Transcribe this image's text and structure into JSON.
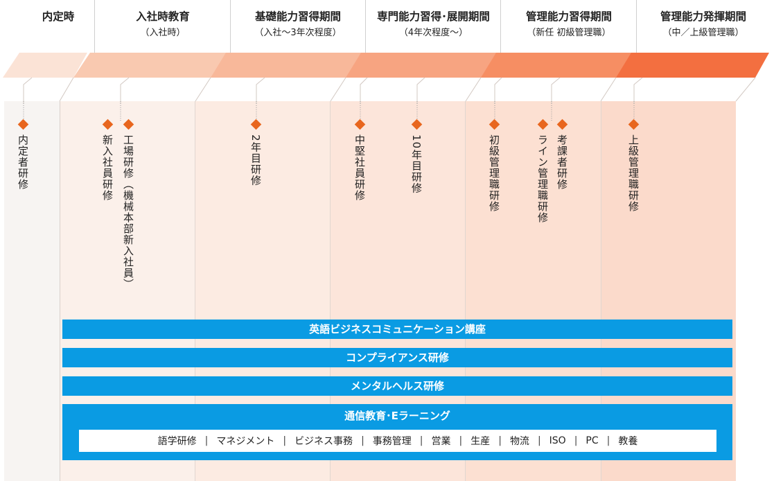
{
  "stages": [
    {
      "title": "内定時",
      "sub": ""
    },
    {
      "title": "入社時教育",
      "sub": "（入社時）"
    },
    {
      "title": "基礎能力習得期間",
      "sub": "（入社〜3年次程度）"
    },
    {
      "title": "専門能力習得･展開期間",
      "sub": "（4年次程度〜）"
    },
    {
      "title": "管理能力習得期間",
      "sub": "（新任 初級管理職）"
    },
    {
      "title": "管理能力発揮期間",
      "sub": "（中／上級管理職）"
    }
  ],
  "trainings": [
    {
      "label": "内定者研修"
    },
    {
      "label": "新入社員研修"
    },
    {
      "label": "工場研修（機械本部新入社員）"
    },
    {
      "label": "2年目研修"
    },
    {
      "label": "中堅社員研修"
    },
    {
      "label": "10年目研修"
    },
    {
      "label": "初級管理職研修"
    },
    {
      "label": "ライン管理職研修"
    },
    {
      "label": "考課者研修"
    },
    {
      "label": "上級管理職研修"
    }
  ],
  "bars": [
    {
      "label": "英語ビジネスコミュニケーション講座"
    },
    {
      "label": "コンプライアンス研修"
    },
    {
      "label": "メンタルヘルス研修"
    },
    {
      "label": "通信教育･Eラーニング"
    }
  ],
  "elearning_items": [
    "語学研修",
    "マネジメント",
    "ビジネス事務",
    "事務管理",
    "営業",
    "生産",
    "物流",
    "ISO",
    "PC",
    "教養"
  ],
  "colors": {
    "accent": "#e8661e",
    "bar_blue": "#0a9be3",
    "arrow_gradient": [
      "#fbe3d6",
      "#f9c9b0",
      "#f8b89a",
      "#f7a481",
      "#f68e63",
      "#f36f40"
    ],
    "band_gradient": [
      "#f7f4f2",
      "#fbf0ea",
      "#fcebe2",
      "#fce5da",
      "#fce0d2",
      "#fbdacb"
    ]
  }
}
